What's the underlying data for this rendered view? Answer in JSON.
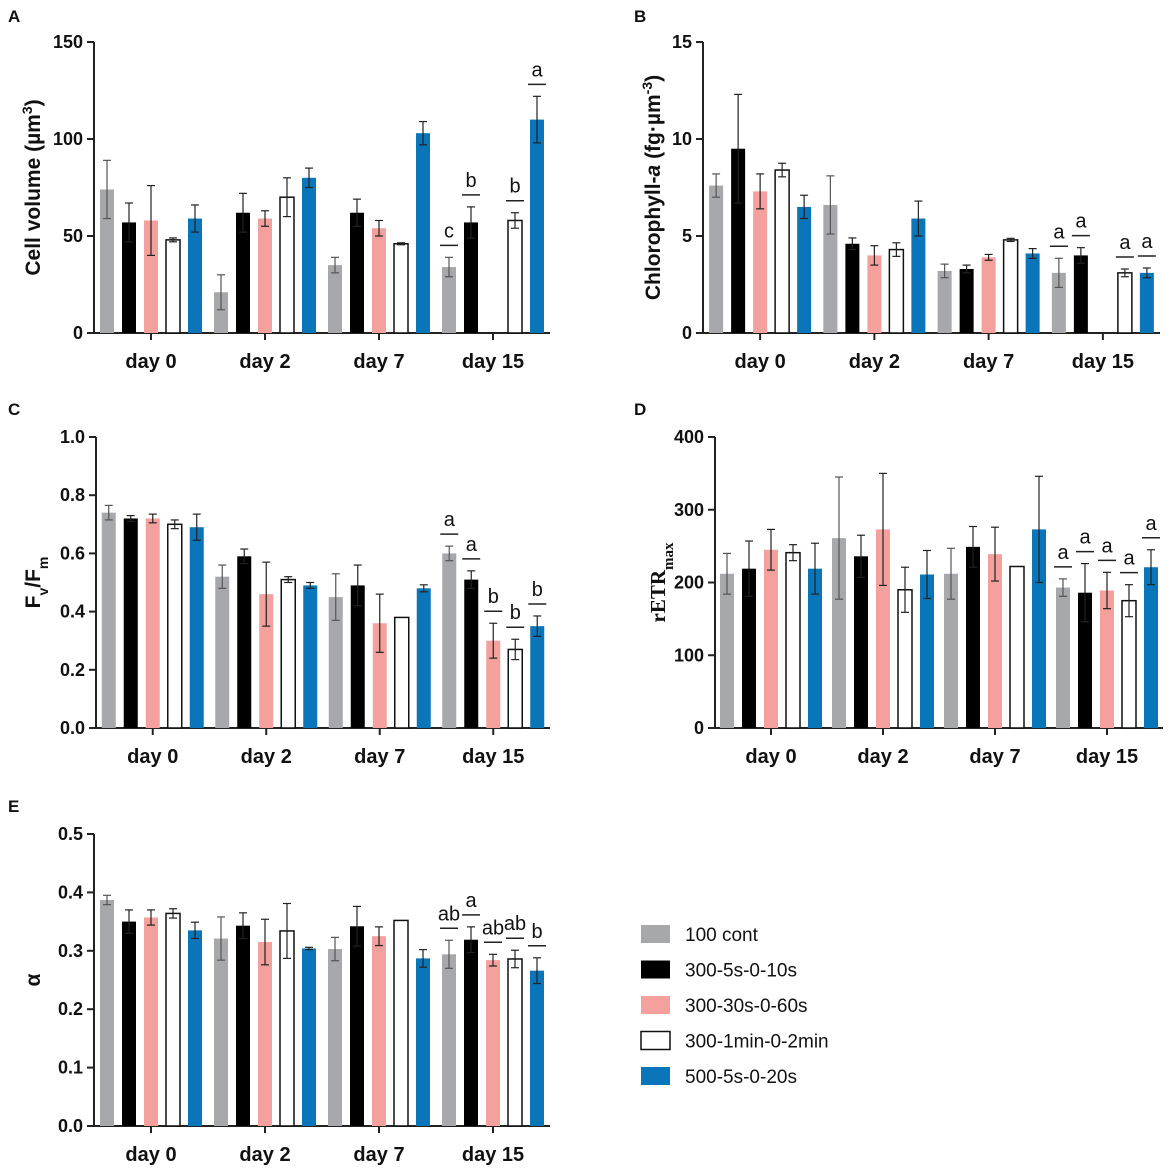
{
  "colors": {
    "100 cont": "#a7a8ab",
    "300-5s-0-10s": "#000000",
    "300-30s-0-60s": "#f4a09c",
    "300-1min-0-2min": "#ffffff",
    "500-5s-0-20s": "#0a75b8"
  },
  "legend": {
    "position": "right",
    "entries": [
      "100 cont",
      "300-5s-0-10s",
      "300-30s-0-60s",
      "300-1min-0-2min",
      "500-5s-0-20s"
    ]
  },
  "chart_data": [
    {
      "panel": "A",
      "type": "bar",
      "ylabel": "Cell volume (µm3)",
      "ylabel_main": "Cell volume (µm",
      "ylabel_sup": "3",
      "ylabel_end": ")",
      "ylim": [
        0,
        150
      ],
      "yticks": [
        0,
        50,
        100,
        150
      ],
      "tick_labels": [
        "0",
        "50",
        "100",
        "150"
      ],
      "categories": [
        "day 0",
        "day 2",
        "day 7",
        "day 15"
      ],
      "series": [
        {
          "name": "100 cont",
          "values": [
            74,
            21,
            35,
            34
          ],
          "errors": [
            15,
            9,
            4,
            5
          ]
        },
        {
          "name": "300-5s-0-10s",
          "values": [
            57,
            62,
            62,
            57
          ],
          "errors": [
            10,
            10,
            7,
            8
          ]
        },
        {
          "name": "300-30s-0-60s",
          "values": [
            58,
            59,
            54,
            null
          ],
          "errors": [
            18,
            4,
            4,
            null
          ]
        },
        {
          "name": "300-1min-0-2min",
          "values": [
            48,
            70,
            46,
            58
          ],
          "errors": [
            1,
            10,
            0.5,
            4
          ]
        },
        {
          "name": "500-5s-0-20s",
          "values": [
            59,
            80,
            103,
            110
          ],
          "errors": [
            7,
            5,
            6,
            12
          ]
        }
      ],
      "annotations": [
        {
          "category": "day 15",
          "series": "100 cont",
          "text": "c"
        },
        {
          "category": "day 15",
          "series": "300-5s-0-10s",
          "text": "b"
        },
        {
          "category": "day 15",
          "series": "300-1min-0-2min",
          "text": "b"
        },
        {
          "category": "day 15",
          "series": "500-5s-0-20s",
          "text": "a"
        }
      ]
    },
    {
      "panel": "B",
      "type": "bar",
      "ylabel": "Chlorophyll-a (fg·µm-3)",
      "ylabel_main": "Chlorophyll-",
      "ylabel_italic": "a",
      "ylabel_mid": " (fg·µm",
      "ylabel_sup": "-3",
      "ylabel_end": ")",
      "ylim": [
        0,
        15
      ],
      "yticks": [
        0,
        5,
        10,
        15
      ],
      "tick_labels": [
        "0",
        "5",
        "10",
        "15"
      ],
      "categories": [
        "day 0",
        "day 2",
        "day 7",
        "day 15"
      ],
      "series": [
        {
          "name": "100 cont",
          "values": [
            7.6,
            6.6,
            3.2,
            3.1
          ],
          "errors": [
            0.6,
            1.5,
            0.35,
            0.75
          ]
        },
        {
          "name": "300-5s-0-10s",
          "values": [
            9.5,
            4.6,
            3.3,
            4.0
          ],
          "errors": [
            2.8,
            0.3,
            0.2,
            0.4
          ]
        },
        {
          "name": "300-30s-0-60s",
          "values": [
            7.3,
            4.0,
            3.9,
            null
          ],
          "errors": [
            0.9,
            0.5,
            0.15,
            null
          ]
        },
        {
          "name": "300-1min-0-2min",
          "values": [
            8.4,
            4.3,
            4.8,
            3.1
          ],
          "errors": [
            0.35,
            0.35,
            0.08,
            0.2
          ]
        },
        {
          "name": "500-5s-0-20s",
          "values": [
            6.5,
            5.9,
            4.1,
            3.1
          ],
          "errors": [
            0.6,
            0.9,
            0.25,
            0.25
          ]
        }
      ],
      "annotations": [
        {
          "category": "day 15",
          "series": "100 cont",
          "text": "a"
        },
        {
          "category": "day 15",
          "series": "300-5s-0-10s",
          "text": "a"
        },
        {
          "category": "day 15",
          "series": "300-1min-0-2min",
          "text": "a"
        },
        {
          "category": "day 15",
          "series": "500-5s-0-20s",
          "text": "a"
        }
      ]
    },
    {
      "panel": "C",
      "type": "bar",
      "ylabel": "Fv/Fm",
      "ylabel_main": "F",
      "ylabel_sub": "v",
      "ylabel_mid": "/F",
      "ylabel_sub2": "m",
      "ylim": [
        0,
        1.0
      ],
      "yticks": [
        0,
        0.2,
        0.4,
        0.6,
        0.8,
        1.0
      ],
      "tick_labels": [
        "0.0",
        "0.2",
        "0.4",
        "0.6",
        "0.8",
        "1.0"
      ],
      "categories": [
        "day 0",
        "day 2",
        "day 7",
        "day 15"
      ],
      "series": [
        {
          "name": "100 cont",
          "values": [
            0.74,
            0.52,
            0.45,
            0.6
          ],
          "errors": [
            0.025,
            0.04,
            0.08,
            0.025
          ]
        },
        {
          "name": "300-5s-0-10s",
          "values": [
            0.72,
            0.59,
            0.49,
            0.51
          ],
          "errors": [
            0.01,
            0.025,
            0.07,
            0.03
          ]
        },
        {
          "name": "300-30s-0-60s",
          "values": [
            0.72,
            0.46,
            0.36,
            0.3
          ],
          "errors": [
            0.015,
            0.11,
            0.1,
            0.06
          ]
        },
        {
          "name": "300-1min-0-2min",
          "values": [
            0.7,
            0.51,
            0.38,
            0.27
          ],
          "errors": [
            0.015,
            0.01,
            0,
            0.035
          ]
        },
        {
          "name": "500-5s-0-20s",
          "values": [
            0.69,
            0.49,
            0.48,
            0.35
          ],
          "errors": [
            0.045,
            0.01,
            0.012,
            0.035
          ]
        }
      ],
      "annotations": [
        {
          "category": "day 15",
          "series": "100 cont",
          "text": "a"
        },
        {
          "category": "day 15",
          "series": "300-5s-0-10s",
          "text": "a"
        },
        {
          "category": "day 15",
          "series": "300-30s-0-60s",
          "text": "b"
        },
        {
          "category": "day 15",
          "series": "300-1min-0-2min",
          "text": "b"
        },
        {
          "category": "day 15",
          "series": "500-5s-0-20s",
          "text": "b"
        }
      ]
    },
    {
      "panel": "D",
      "type": "bar",
      "ylabel": "rETRmax",
      "ylabel_main": "rETR",
      "ylabel_sub": "max",
      "ylim": [
        0,
        400
      ],
      "yticks": [
        0,
        100,
        200,
        300,
        400
      ],
      "tick_labels": [
        "0",
        "100",
        "200",
        "300",
        "400"
      ],
      "categories": [
        "day 0",
        "day 2",
        "day 7",
        "day 15"
      ],
      "series": [
        {
          "name": "100 cont",
          "values": [
            212,
            261,
            212,
            193
          ],
          "errors": [
            28,
            84,
            35,
            12
          ]
        },
        {
          "name": "300-5s-0-10s",
          "values": [
            219,
            236,
            249,
            186
          ],
          "errors": [
            38,
            29,
            28,
            40
          ]
        },
        {
          "name": "300-30s-0-60s",
          "values": [
            245,
            273,
            239,
            189
          ],
          "errors": [
            28,
            77,
            37,
            25
          ]
        },
        {
          "name": "300-1min-0-2min",
          "values": [
            241,
            190,
            222,
            175
          ],
          "errors": [
            11,
            31,
            0,
            22
          ]
        },
        {
          "name": "500-5s-0-20s",
          "values": [
            219,
            211,
            273,
            221
          ],
          "errors": [
            35,
            33,
            73,
            24
          ]
        }
      ],
      "annotations": [
        {
          "category": "day 15",
          "series": "100 cont",
          "text": "a"
        },
        {
          "category": "day 15",
          "series": "300-5s-0-10s",
          "text": "a"
        },
        {
          "category": "day 15",
          "series": "300-30s-0-60s",
          "text": "a"
        },
        {
          "category": "day 15",
          "series": "300-1min-0-2min",
          "text": "a"
        },
        {
          "category": "day 15",
          "series": "500-5s-0-20s",
          "text": "a"
        }
      ]
    },
    {
      "panel": "E",
      "type": "bar",
      "ylabel": "α",
      "ylabel_main": "α",
      "ylim": [
        0,
        0.5
      ],
      "yticks": [
        0,
        0.1,
        0.2,
        0.3,
        0.4,
        0.5
      ],
      "tick_labels": [
        "0.0",
        "0.1",
        "0.2",
        "0.3",
        "0.4",
        "0.5"
      ],
      "categories": [
        "day 0",
        "day 2",
        "day 7",
        "day 15"
      ],
      "series": [
        {
          "name": "100 cont",
          "values": [
            0.387,
            0.321,
            0.303,
            0.294
          ],
          "errors": [
            0.008,
            0.037,
            0.02,
            0.024
          ]
        },
        {
          "name": "300-5s-0-10s",
          "values": [
            0.35,
            0.343,
            0.342,
            0.319
          ],
          "errors": [
            0.02,
            0.022,
            0.034,
            0.022
          ]
        },
        {
          "name": "300-30s-0-60s",
          "values": [
            0.357,
            0.315,
            0.325,
            0.284
          ],
          "errors": [
            0.013,
            0.039,
            0.016,
            0.01
          ]
        },
        {
          "name": "300-1min-0-2min",
          "values": [
            0.364,
            0.334,
            0.352,
            0.286
          ],
          "errors": [
            0.008,
            0.047,
            0,
            0.015
          ]
        },
        {
          "name": "500-5s-0-20s",
          "values": [
            0.335,
            0.304,
            0.287,
            0.266
          ],
          "errors": [
            0.014,
            0.002,
            0.015,
            0.022
          ]
        }
      ],
      "annotations": [
        {
          "category": "day 15",
          "series": "100 cont",
          "text": "ab"
        },
        {
          "category": "day 15",
          "series": "300-5s-0-10s",
          "text": "a"
        },
        {
          "category": "day 15",
          "series": "300-30s-0-60s",
          "text": "ab"
        },
        {
          "category": "day 15",
          "series": "300-1min-0-2min",
          "text": "ab"
        },
        {
          "category": "day 15",
          "series": "500-5s-0-20s",
          "text": "b"
        }
      ]
    }
  ]
}
